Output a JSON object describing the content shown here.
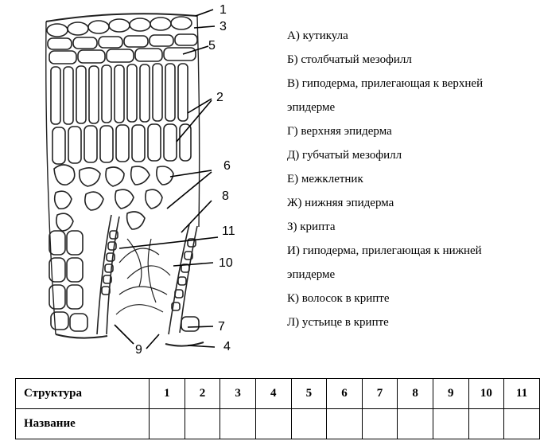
{
  "figure": {
    "callouts": [
      "1",
      "3",
      "5",
      "2",
      "6",
      "8",
      "11",
      "10",
      "7",
      "4",
      "9"
    ]
  },
  "legend": {
    "items": [
      "А) кутикула",
      "Б) столбчатый мезофилл",
      "В) гиподерма, прилегающая к верхней",
      "эпидерме",
      "Г) верхняя эпидерма",
      "Д) губчатый мезофилл",
      "Е) межклетник",
      "Ж) нижняя эпидерма",
      "З) крипта",
      "И) гиподерма, прилегающая к нижней",
      "эпидерме",
      "К) волосок в крипте",
      "Л) устьице в крипте"
    ]
  },
  "table": {
    "row1_header": "Структура",
    "numbers": [
      "1",
      "2",
      "3",
      "4",
      "5",
      "6",
      "7",
      "8",
      "9",
      "10",
      "11"
    ],
    "row2_header": "Название"
  }
}
